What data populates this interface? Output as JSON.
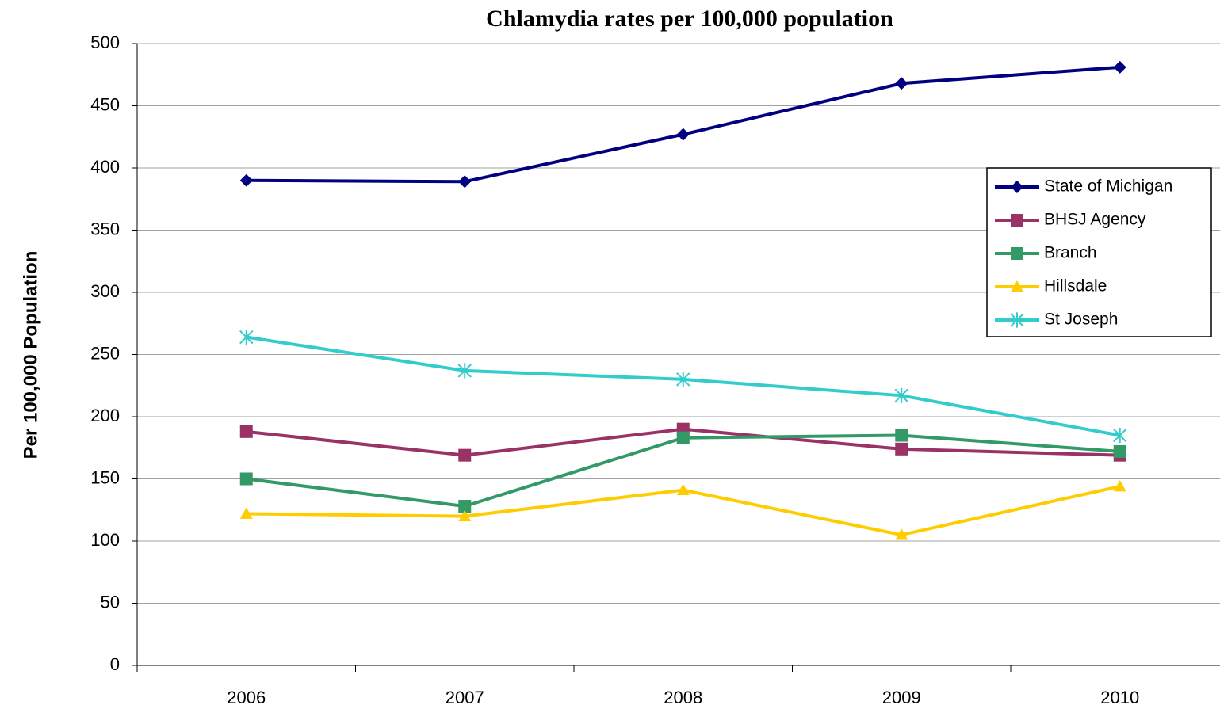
{
  "chart_data": {
    "type": "line",
    "title": "Chlamydia rates per 100,000 population",
    "y_label": "Per 100,000 Population",
    "categories": [
      "2006",
      "2007",
      "2008",
      "2009",
      "2010"
    ],
    "series": [
      {
        "name": "State of Michigan",
        "color": "#000080",
        "marker": "diamond",
        "values": [
          390,
          389,
          427,
          468,
          481
        ]
      },
      {
        "name": "BHSJ Agency",
        "color": "#993366",
        "marker": "square",
        "values": [
          188,
          169,
          190,
          174,
          169
        ]
      },
      {
        "name": "Branch",
        "color": "#339966",
        "marker": "square",
        "values": [
          150,
          128,
          183,
          185,
          172
        ]
      },
      {
        "name": "Hillsdale",
        "color": "#ffcc00",
        "marker": "triangle",
        "values": [
          122,
          120,
          141,
          105,
          144
        ]
      },
      {
        "name": "St Joseph",
        "color": "#33cccc",
        "marker": "asterisk",
        "values": [
          264,
          237,
          230,
          217,
          185
        ]
      }
    ],
    "ylim": [
      0,
      500
    ],
    "yticks": [
      0,
      50,
      100,
      150,
      200,
      250,
      300,
      350,
      400,
      450,
      500
    ],
    "grid": true,
    "legend": "right"
  }
}
